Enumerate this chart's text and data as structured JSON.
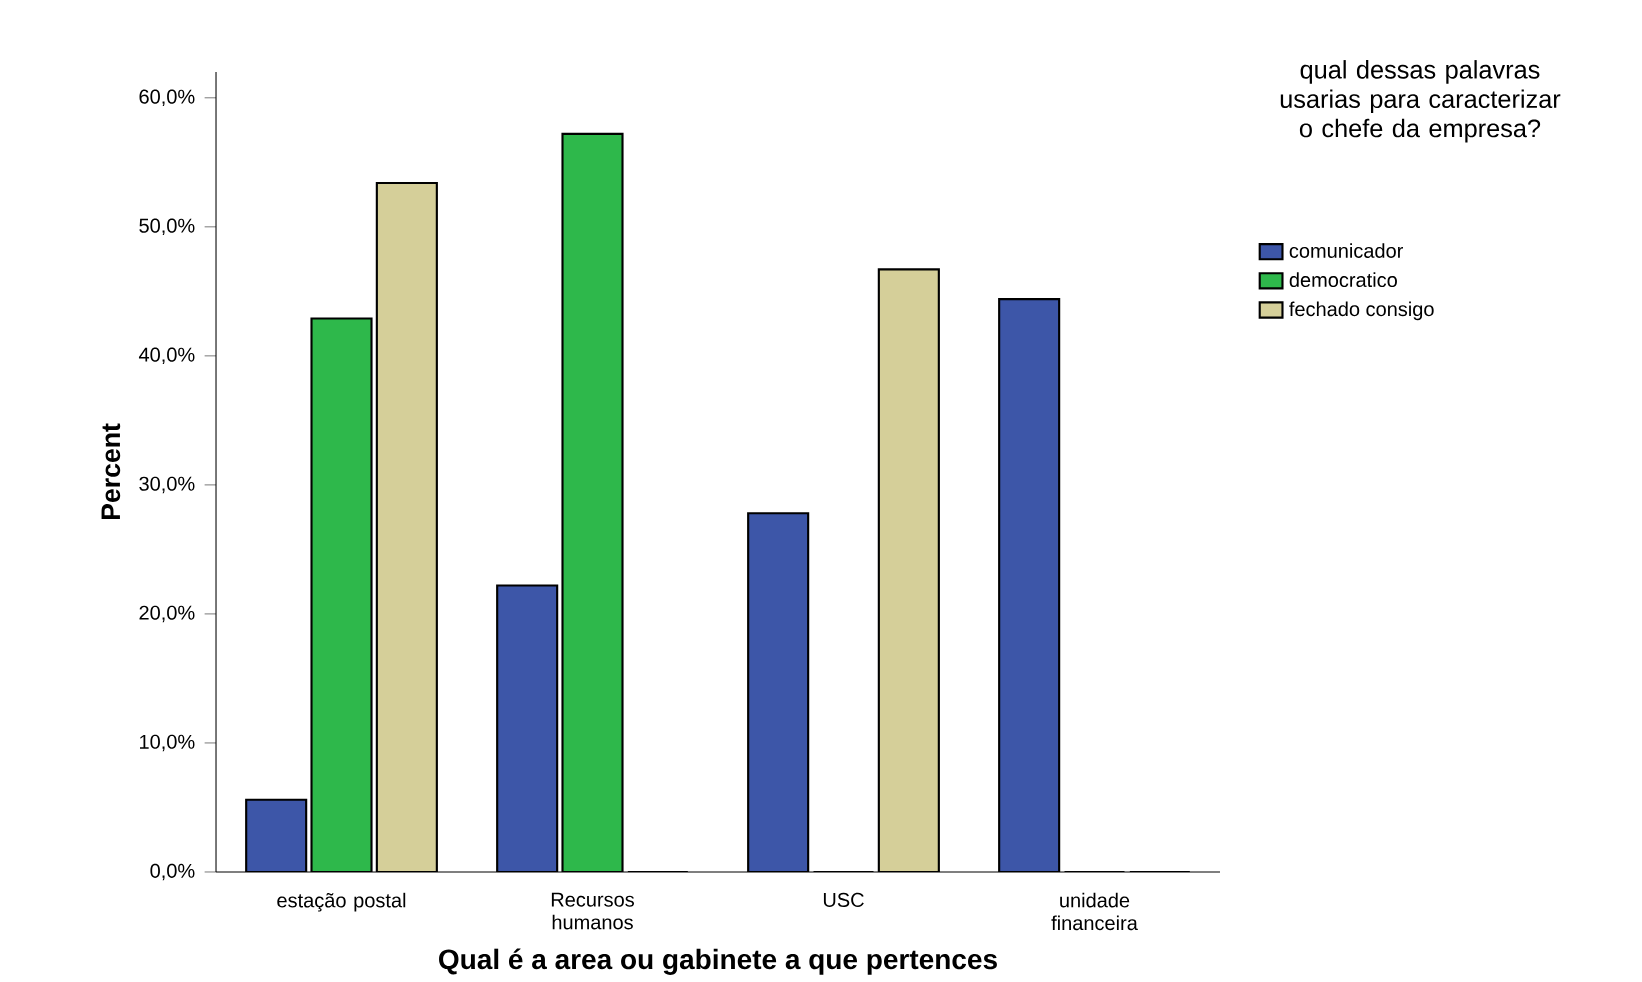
{
  "chart_data": {
    "type": "bar",
    "xlabel": "Qual é a area ou gabinete a que pertences",
    "ylabel": "Percent",
    "legend_title": "qual dessas palavras usarias para caracterizar o chefe da empresa?",
    "categories": [
      "estação postal",
      "Recursos humanos",
      "USC",
      "unidade financeira"
    ],
    "series": [
      {
        "name": "comunicador",
        "color": "#3d56a8",
        "values": [
          5.6,
          22.2,
          27.8,
          44.4
        ]
      },
      {
        "name": "democratico",
        "color": "#2eb84b",
        "values": [
          42.9,
          57.2,
          0,
          0
        ]
      },
      {
        "name": "fechado consigo",
        "color": "#d5cf99",
        "values": [
          53.4,
          0,
          46.7,
          0
        ]
      }
    ],
    "ylim": [
      0,
      62
    ],
    "yticks": [
      {
        "value": 0,
        "label": "0,0%"
      },
      {
        "value": 10,
        "label": "10,0%"
      },
      {
        "value": 20,
        "label": "20,0%"
      },
      {
        "value": 30,
        "label": "30,0%"
      },
      {
        "value": 40,
        "label": "40,0%"
      },
      {
        "value": 50,
        "label": "50,0%"
      },
      {
        "value": 60,
        "label": "60,0%"
      }
    ],
    "legend": "right",
    "grid": false
  }
}
